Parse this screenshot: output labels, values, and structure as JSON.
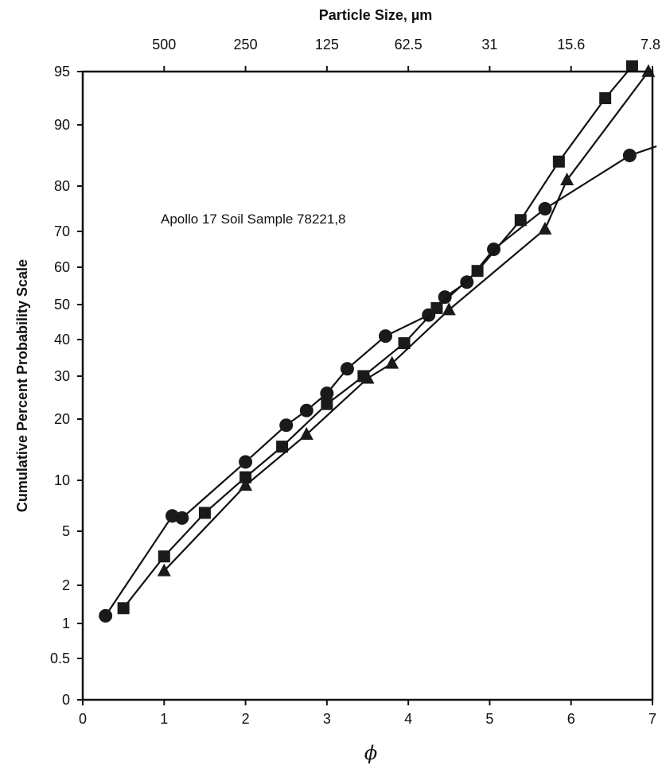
{
  "chart_data": {
    "type": "line",
    "title": "",
    "xlabel": "ϕ",
    "ylabel": "Cumulative Percent Probability Scale",
    "x2label": "Particle Size, µm",
    "xlim": [
      0,
      7
    ],
    "x_ticks": [
      "0",
      "1",
      "2",
      "3",
      "4",
      "5",
      "6",
      "7"
    ],
    "x2_ticks": [
      {
        "phi": 1,
        "label": "500"
      },
      {
        "phi": 2,
        "label": "250"
      },
      {
        "phi": 3,
        "label": "125"
      },
      {
        "phi": 4,
        "label": "62.5"
      },
      {
        "phi": 5,
        "label": "31"
      },
      {
        "phi": 6,
        "label": "15.6"
      },
      {
        "phi": 7,
        "label": "7.8"
      }
    ],
    "y_scale": "probability",
    "y_ticks": [
      "0",
      "0.5",
      "1",
      "2",
      "5",
      "10",
      "20",
      "30",
      "40",
      "50",
      "60",
      "70",
      "80",
      "90",
      "95"
    ],
    "grid": false,
    "legend": "none",
    "annotation": "Apollo 17 Soil Sample 78221,8",
    "series": [
      {
        "marker": "circle",
        "x": [
          0.28,
          1.1,
          1.22,
          2.0,
          2.5,
          2.75,
          3.0,
          3.25,
          3.72,
          4.25,
          4.45,
          4.72,
          5.05,
          5.68,
          6.72,
          7.05
        ],
        "y": [
          1.2,
          6.5,
          6.3,
          13.0,
          19.0,
          22.0,
          26.0,
          32.0,
          41.0,
          47.0,
          52.0,
          56.0,
          65.0,
          75.0,
          85.0,
          86.5
        ]
      },
      {
        "marker": "square",
        "x": [
          0.5,
          1.0,
          1.5,
          2.0,
          2.45,
          3.0,
          3.45,
          3.95,
          4.35,
          4.85,
          5.38,
          5.85,
          6.42,
          6.75
        ],
        "y": [
          1.4,
          3.6,
          6.8,
          10.5,
          15.5,
          23.5,
          30.0,
          39.0,
          49.0,
          59.0,
          72.5,
          84.0,
          92.5,
          95.5
        ]
      },
      {
        "marker": "triangle",
        "x": [
          1.0,
          2.0,
          2.75,
          3.5,
          3.8,
          4.5,
          5.68,
          5.95,
          6.95
        ],
        "y": [
          2.8,
          9.5,
          17.5,
          29.5,
          33.5,
          48.5,
          70.5,
          81.0,
          95.0
        ]
      }
    ]
  }
}
